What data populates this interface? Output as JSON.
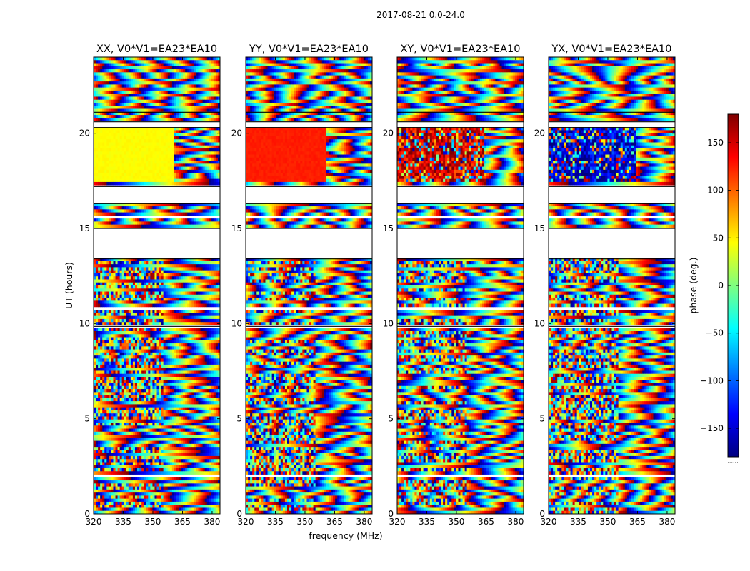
{
  "chart_data": {
    "type": "heatmap",
    "title": "2017-08-21 0.0-24.0",
    "xlabel": "frequency (MHz)",
    "ylabel": "UT (hours)",
    "xlim": [
      320,
      384
    ],
    "ylim": [
      0,
      24
    ],
    "xticks": [
      320,
      335,
      350,
      365,
      380
    ],
    "yticks": [
      0,
      5,
      10,
      15,
      20
    ],
    "colorbar": {
      "label": "phase (deg.)",
      "range": [
        -180,
        180
      ],
      "ticks": [
        150,
        100,
        50,
        0,
        -50,
        -100,
        -150
      ],
      "tick_labels": [
        "150",
        "100",
        "50",
        "0",
        "−50",
        "−100",
        "−150"
      ],
      "colormap": "jet",
      "footnote": "......"
    },
    "panels": [
      {
        "title": "XX, V0*V1=EA23*EA10",
        "smooth_phase_deg": 45
      },
      {
        "title": "YY, V0*V1=EA23*EA10",
        "smooth_phase_deg": 125
      },
      {
        "title": "XY, V0*V1=EA23*EA10",
        "smooth_phase_deg": null
      },
      {
        "title": "YX, V0*V1=EA23*EA10",
        "smooth_phase_deg": null
      }
    ],
    "flagged_hours": [
      [
        13.4,
        15.0
      ],
      [
        15.5,
        15.6
      ],
      [
        16.3,
        17.2
      ],
      [
        20.3,
        20.6
      ],
      [
        21.1,
        21.15
      ],
      [
        16.0,
        16.05
      ],
      [
        9.8,
        9.85
      ],
      [
        6.2,
        6.25
      ],
      [
        4.5,
        4.55
      ],
      [
        3.5,
        3.55
      ],
      [
        2.0,
        2.1
      ],
      [
        1.2,
        1.25
      ],
      [
        22.5,
        22.55
      ],
      [
        23.0,
        23.05
      ],
      [
        11.0,
        11.05
      ],
      [
        12.1,
        12.15
      ],
      [
        7.5,
        7.55
      ],
      [
        10.8,
        10.85
      ],
      [
        5.3,
        5.35
      ]
    ]
  }
}
